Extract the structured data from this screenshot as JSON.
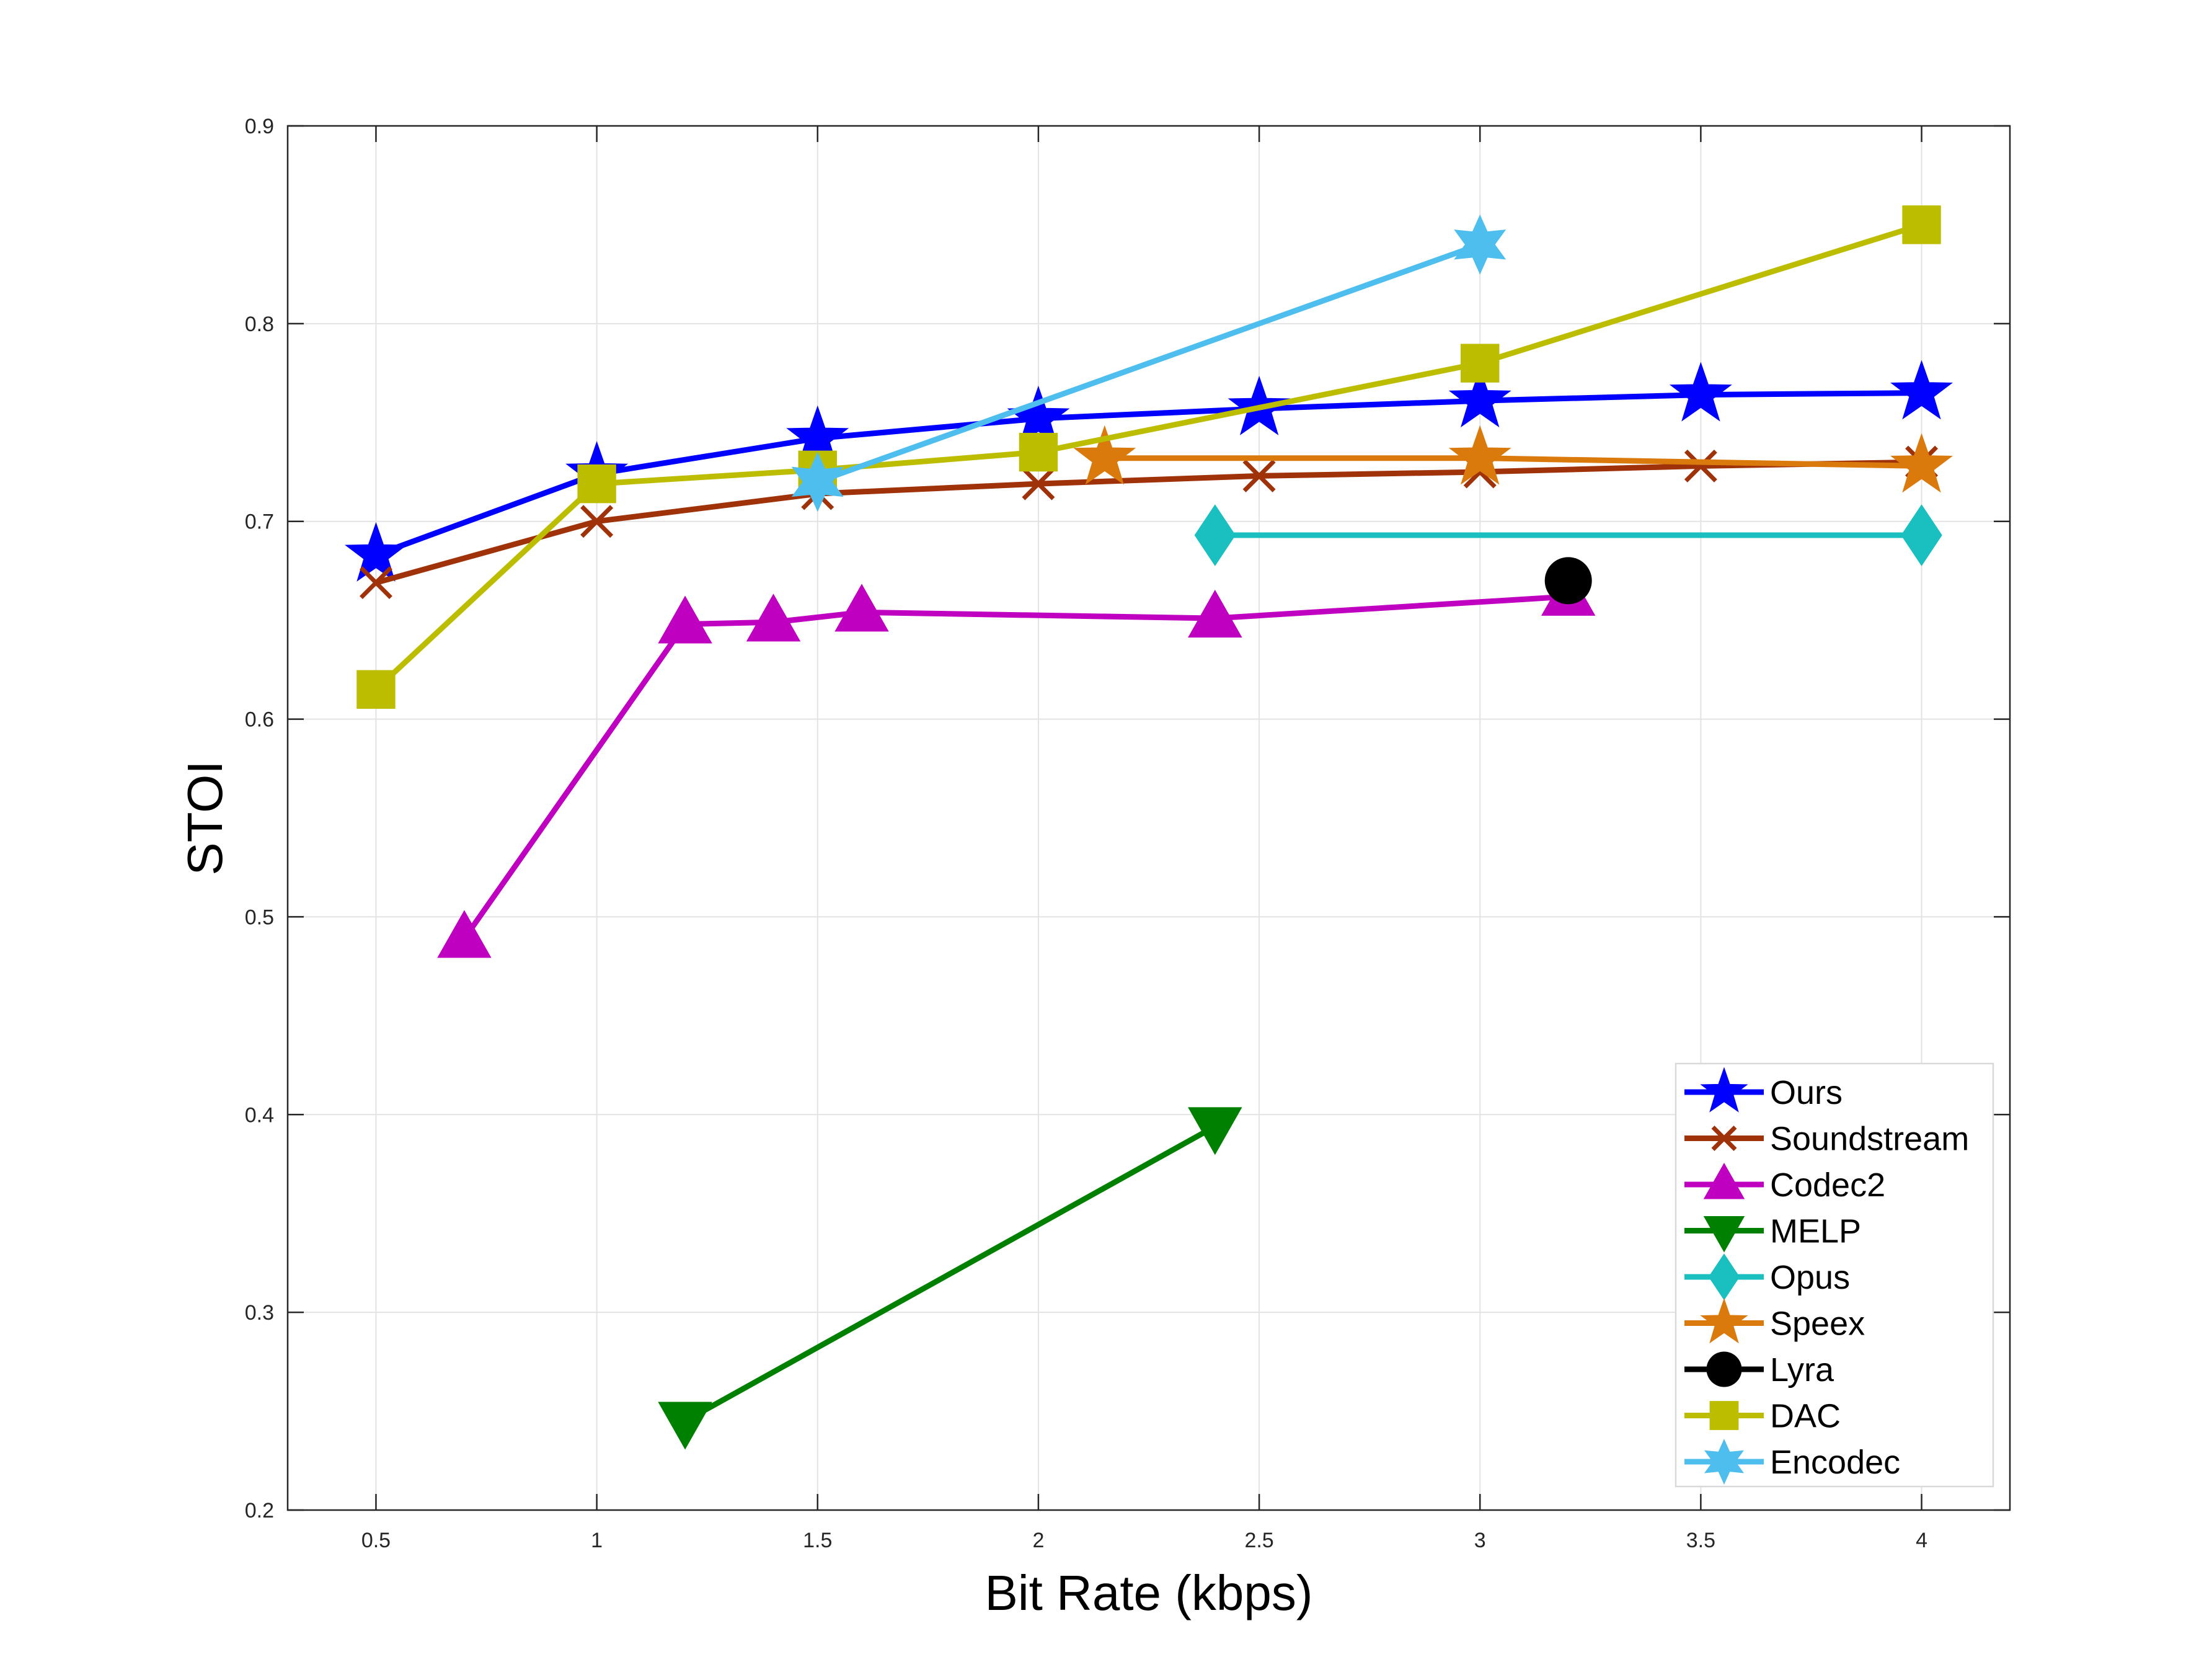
{
  "chart_data": {
    "type": "line",
    "title": "",
    "xlabel": "Bit Rate (kbps)",
    "ylabel": "STOI",
    "xlim": [
      0.3,
      4.2
    ],
    "ylim": [
      0.2,
      0.9
    ],
    "xticks": [
      "0.5",
      "1",
      "1.5",
      "2",
      "2.5",
      "3",
      "3.5",
      "4"
    ],
    "yticks": [
      "0.2",
      "0.3",
      "0.4",
      "0.5",
      "0.6",
      "0.7",
      "0.8",
      "0.9"
    ],
    "grid": true,
    "legend_position": "bottom-right",
    "series": [
      {
        "name": "Ours",
        "color": "#0000FF",
        "marker": "star5",
        "x": [
          0.5,
          1,
          1.5,
          2,
          2.5,
          3,
          3.5,
          4
        ],
        "y": [
          0.683,
          0.724,
          0.742,
          0.752,
          0.757,
          0.761,
          0.764,
          0.765
        ]
      },
      {
        "name": "Soundstream",
        "color": "#A0320A",
        "marker": "x",
        "x": [
          0.5,
          1,
          1.5,
          2,
          2.5,
          3,
          3.5,
          4
        ],
        "y": [
          0.669,
          0.7,
          0.714,
          0.719,
          0.723,
          0.725,
          0.728,
          0.73
        ]
      },
      {
        "name": "Codec2",
        "color": "#C000C0",
        "marker": "triangle-up",
        "x": [
          0.7,
          1.2,
          1.4,
          1.6,
          2.4,
          3.2
        ],
        "y": [
          0.489,
          0.648,
          0.649,
          0.654,
          0.651,
          0.662
        ]
      },
      {
        "name": "MELP",
        "color": "#008000",
        "marker": "triangle-down",
        "x": [
          1.2,
          2.4
        ],
        "y": [
          0.245,
          0.394
        ]
      },
      {
        "name": "Opus",
        "color": "#1ABFBF",
        "marker": "diamond",
        "x": [
          2.4,
          4
        ],
        "y": [
          0.693,
          0.693
        ]
      },
      {
        "name": "Speex",
        "color": "#DB7A0C",
        "marker": "star5",
        "x": [
          2.15,
          3,
          4
        ],
        "y": [
          0.732,
          0.732,
          0.728
        ]
      },
      {
        "name": "Lyra",
        "color": "#000000",
        "marker": "circle",
        "x": [
          3.2
        ],
        "y": [
          0.67
        ]
      },
      {
        "name": "DAC",
        "color": "#BDBD00",
        "marker": "square",
        "x": [
          0.5,
          1,
          1.5,
          2,
          3,
          4
        ],
        "y": [
          0.615,
          0.719,
          0.726,
          0.735,
          0.78,
          0.85
        ]
      },
      {
        "name": "Encodec",
        "color": "#4DBEEE",
        "marker": "star6",
        "x": [
          1.5,
          3
        ],
        "y": [
          0.72,
          0.84
        ]
      }
    ]
  }
}
